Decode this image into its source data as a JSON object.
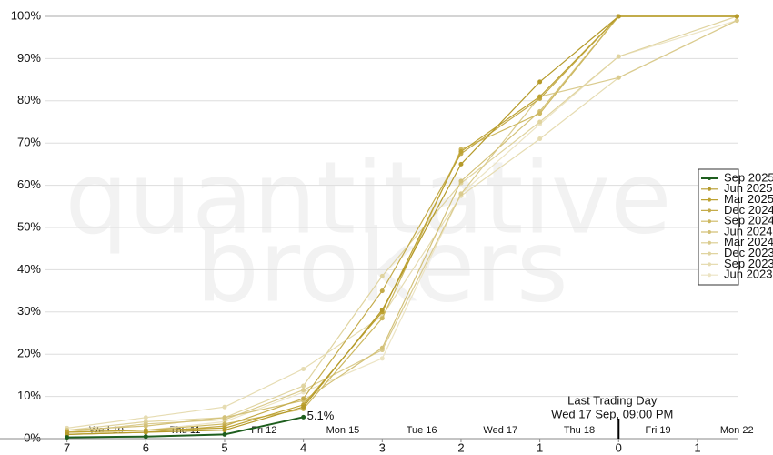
{
  "chart_data": {
    "type": "line",
    "watermark": [
      "quantitative",
      "brokers"
    ],
    "x": [
      7,
      6,
      5,
      4,
      3,
      2,
      1,
      0,
      -1.5
    ],
    "xlim": [
      7.85,
      -1.52
    ],
    "xticks": [
      7,
      6,
      5,
      4,
      3,
      2,
      1,
      0,
      {
        "value": -1,
        "label": "1"
      }
    ],
    "date_labels": [
      {
        "value": 6.5,
        "label": "Wed 10"
      },
      {
        "value": 5.5,
        "label": "Thu 11"
      },
      {
        "value": 4.5,
        "label": "Fri 12"
      },
      {
        "value": 3.5,
        "label": "Mon 15"
      },
      {
        "value": 2.5,
        "label": "Tue 16"
      },
      {
        "value": 1.5,
        "label": "Wed 17"
      },
      {
        "value": 0.5,
        "label": "Thu 18"
      },
      {
        "value": -0.5,
        "label": "Fri 19"
      },
      {
        "value": -1.5,
        "label": "Mon 22"
      }
    ],
    "ylim": [
      0,
      100
    ],
    "yticks": [
      {
        "value": 0,
        "label": "0%"
      },
      {
        "value": 10,
        "label": "10%"
      },
      {
        "value": 20,
        "label": "20%"
      },
      {
        "value": 30,
        "label": "30%"
      },
      {
        "value": 40,
        "label": "40%"
      },
      {
        "value": 50,
        "label": "50%"
      },
      {
        "value": 60,
        "label": "60%"
      },
      {
        "value": 70,
        "label": "70%"
      },
      {
        "value": 80,
        "label": "80%"
      },
      {
        "value": 90,
        "label": "90%"
      },
      {
        "value": 100,
        "label": "100%"
      }
    ],
    "grid": true,
    "legend": "right",
    "annotation": {
      "x": 0,
      "lines": [
        "Last Trading Day",
        "Wed 17 Sep, 09:00 PM"
      ]
    },
    "series": [
      {
        "name": "Sep 2025",
        "color": "#1e5e1e",
        "values": [
          0.3,
          0.5,
          1.0,
          5.1,
          null,
          null,
          null,
          null,
          null
        ],
        "value_labels": [
          null,
          null,
          null,
          "5.1%",
          null,
          null,
          null,
          null,
          null
        ]
      },
      {
        "name": "Jun 2025",
        "color": "#b59a2a",
        "values": [
          1,
          1.5,
          2,
          7.5,
          30.5,
          65,
          84.5,
          100,
          100
        ]
      },
      {
        "name": "Mar 2025",
        "color": "#bda232",
        "values": [
          1.5,
          2,
          2.5,
          8,
          30,
          68,
          81,
          100,
          100
        ]
      },
      {
        "name": "Dec 2024",
        "color": "#c4ab4a",
        "values": [
          1,
          1.5,
          3,
          9.5,
          35,
          67.5,
          80.5,
          100,
          100
        ]
      },
      {
        "name": "Sep 2024",
        "color": "#cdb860",
        "values": [
          1.5,
          2,
          3.5,
          7,
          28.5,
          68.5,
          77,
          100,
          100
        ]
      },
      {
        "name": "Jun 2024",
        "color": "#d3c178",
        "values": [
          2,
          3,
          5,
          9,
          21.5,
          61,
          77.5,
          100,
          100
        ]
      },
      {
        "name": "Mar 2024",
        "color": "#dacb8e",
        "values": [
          1.5,
          3.5,
          4.5,
          11.5,
          21,
          58,
          81,
          85.5,
          99
        ]
      },
      {
        "name": "Dec 2023",
        "color": "#e0d4a0",
        "values": [
          2,
          4,
          5,
          12.5,
          38.5,
          60.5,
          75,
          90.5,
          100
        ]
      },
      {
        "name": "Sep 2023",
        "color": "#e6dcb2",
        "values": [
          2.5,
          5,
          7.5,
          16.5,
          29,
          57.5,
          71,
          85.5,
          99
        ]
      },
      {
        "name": "Jun 2023",
        "color": "#ece4c4",
        "values": [
          1,
          2,
          4,
          11,
          19,
          58,
          74.5,
          90.5,
          99
        ]
      }
    ]
  }
}
